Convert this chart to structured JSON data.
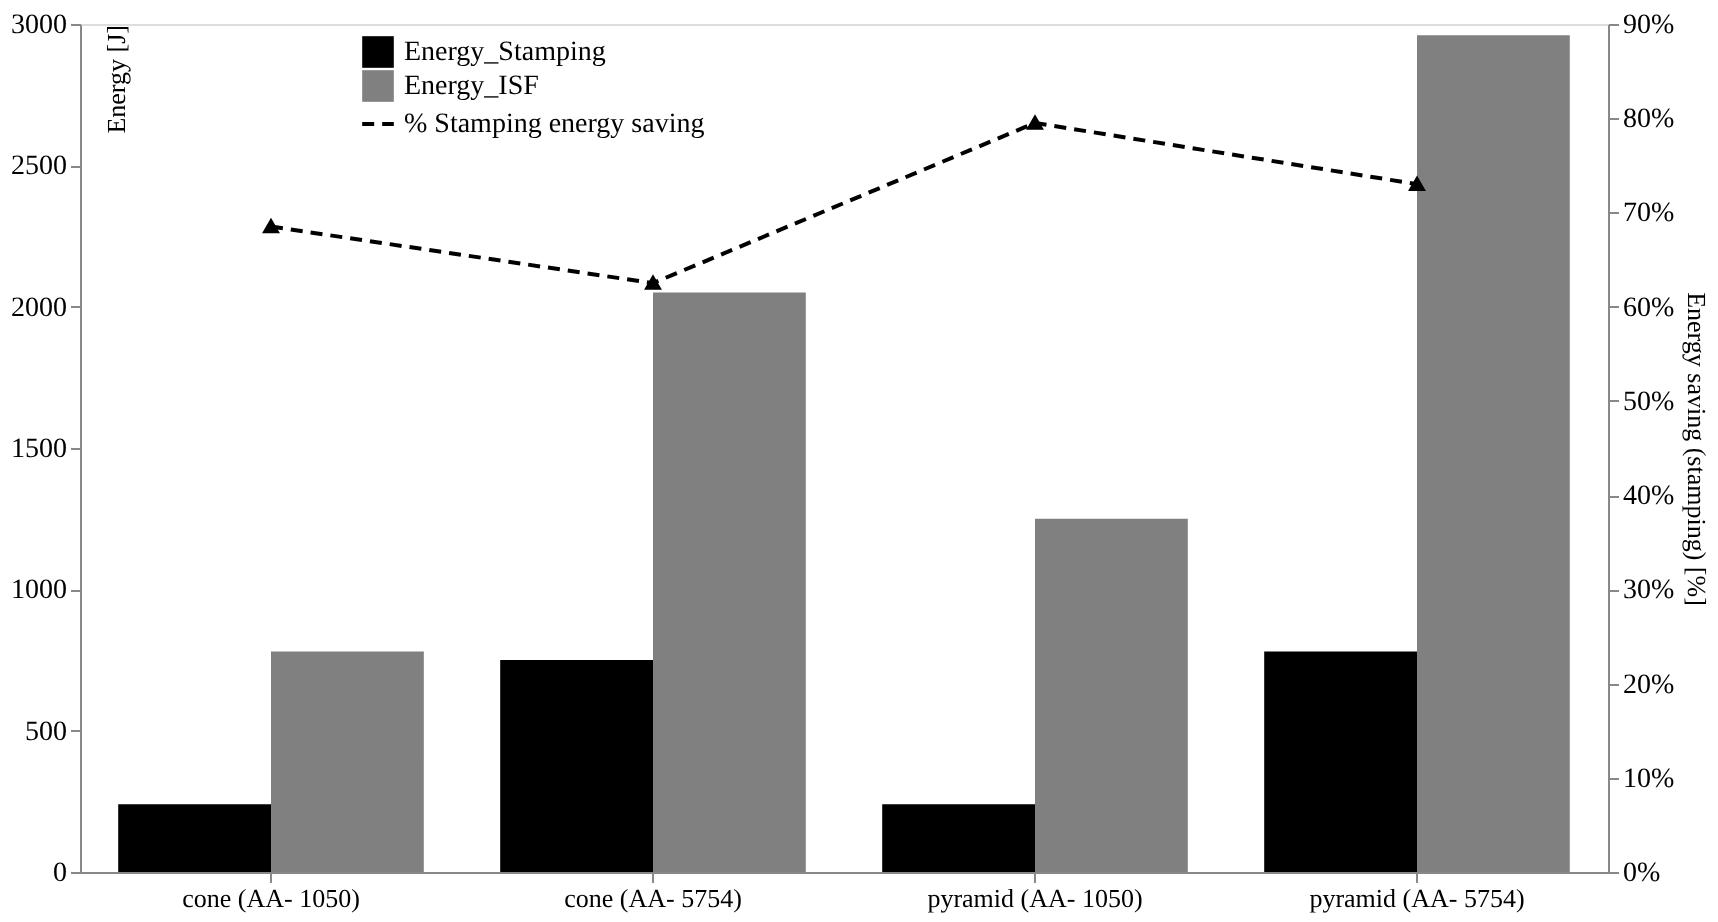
{
  "chart_data": {
    "type": "bar",
    "categories": [
      "cone (AA- 1050)",
      "cone (AA- 5754)",
      "pyramid (AA- 1050)",
      "pyramid (AA- 5754)"
    ],
    "series": [
      {
        "name": "Energy_Stamping",
        "color": "#000000",
        "values": [
          240,
          750,
          240,
          780
        ]
      },
      {
        "name": "Energy_ISF",
        "color": "#808080",
        "values": [
          780,
          2050,
          1250,
          2960
        ]
      },
      {
        "name": "% Stamping energy saving",
        "type": "line",
        "axis": "y2",
        "color": "#000000",
        "marker": "triangle",
        "line_style": "dashed",
        "values": [
          68.5,
          62.5,
          79.5,
          73
        ]
      }
    ],
    "ylabel": "Energy [J]",
    "y2label": "Energy saving (stamping) [%]",
    "ylim": [
      0,
      3000
    ],
    "yticks": [
      0,
      500,
      1000,
      1500,
      2000,
      2500,
      3000
    ],
    "y2lim": [
      0,
      90
    ],
    "y2ticks": [
      {
        "value": 0,
        "label": "0%"
      },
      {
        "value": 10,
        "label": "10%"
      },
      {
        "value": 20,
        "label": "20%"
      },
      {
        "value": 30,
        "label": "30%"
      },
      {
        "value": 40,
        "label": "40%"
      },
      {
        "value": 50,
        "label": "50%"
      },
      {
        "value": 60,
        "label": "60%"
      },
      {
        "value": 70,
        "label": "70%"
      },
      {
        "value": 80,
        "label": "80%"
      },
      {
        "value": 90,
        "label": "90%"
      }
    ],
    "grid": false,
    "legend": "top"
  }
}
